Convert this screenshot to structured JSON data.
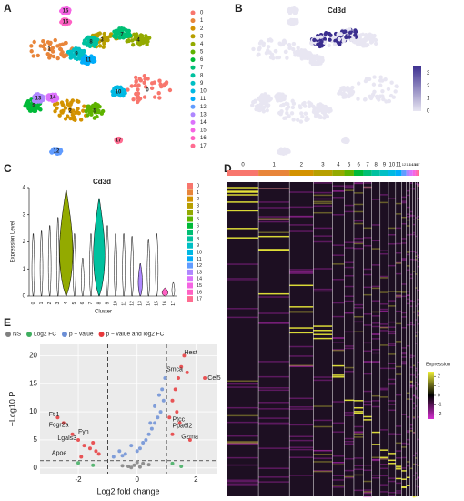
{
  "chart_data": [
    {
      "type": "umap",
      "panel_label": "A",
      "categories": [
        "0",
        "1",
        "2",
        "3",
        "4",
        "5",
        "6",
        "7",
        "8",
        "9",
        "10",
        "11",
        "12",
        "13",
        "14",
        "15",
        "16",
        "17"
      ],
      "colors": [
        "#F8766D",
        "#E8853A",
        "#D39200",
        "#B79F00",
        "#93AA00",
        "#5EB300",
        "#00BA38",
        "#00BF74",
        "#00C19F",
        "#00BFC4",
        "#00B9E3",
        "#00ADFA",
        "#619CFF",
        "#AE87FF",
        "#DB72FB",
        "#F564E3",
        "#FF61C3",
        "#FF6C91"
      ]
    },
    {
      "type": "feature",
      "panel_label": "B",
      "title": "Cd3d",
      "colorbar": {
        "lim": [
          0,
          3.6
        ],
        "ticks": [
          0,
          1,
          2,
          3
        ],
        "low": "#e8e6f2",
        "high": "#3b2e8f"
      }
    },
    {
      "type": "violin",
      "panel_label": "C",
      "title": "Cd3d",
      "x_label": "Cluster",
      "y_label": "Expression Level",
      "categories": [
        "0",
        "1",
        "2",
        "3",
        "4",
        "5",
        "6",
        "7",
        "8",
        "9",
        "10",
        "11",
        "12",
        "13",
        "14",
        "15",
        "16",
        "17"
      ],
      "values": [
        2.3,
        2.4,
        2.6,
        2.9,
        3.9,
        2.3,
        1.4,
        2.3,
        3.6,
        2.6,
        2.3,
        2.3,
        2.2,
        1.2,
        2.1,
        2.3,
        0.3,
        0.5
      ],
      "ylim": [
        0,
        4
      ],
      "yticks": [
        0,
        1,
        2,
        3,
        4
      ]
    },
    {
      "type": "heatmap",
      "panel_label": "D",
      "legend_title": "Expression",
      "categories": [
        "0",
        "1",
        "2",
        "3",
        "4",
        "5",
        "6",
        "7",
        "8",
        "9",
        "10",
        "11",
        "12",
        "13",
        "14",
        "15",
        "16",
        "17"
      ],
      "colorbar": {
        "lim": [
          -2.5,
          2.5
        ],
        "ticks": [
          -2,
          -1,
          0,
          1,
          2
        ],
        "low": "#d42fd0",
        "mid": "#000000",
        "high": "#f0f03a"
      }
    },
    {
      "type": "volcano",
      "panel_label": "E",
      "x_label": "Log2 fold change",
      "y_label": "−Log10 P",
      "xlim": [
        -3.3,
        2.7
      ],
      "ylim": [
        -1,
        22
      ],
      "xticks": [
        -2,
        0,
        2
      ],
      "yticks": [
        0,
        5,
        10,
        15,
        20
      ],
      "vlines": [
        -1,
        1
      ],
      "hline": 1.3,
      "series": [
        {
          "name": "NS",
          "color": "#808080",
          "x": [
            -0.3,
            -0.1,
            0.1,
            0.2,
            -0.5,
            0.4,
            0.0,
            -0.2
          ],
          "values": [
            0.3,
            0.5,
            0.2,
            0.8,
            0.4,
            0.6,
            1.0,
            0.1
          ]
        },
        {
          "name": "Log2 FC",
          "color": "#3fae5f",
          "x": [
            -1.5,
            1.2,
            -2.0,
            1.5
          ],
          "values": [
            0.5,
            0.8,
            0.9,
            0.3
          ]
        },
        {
          "name": "p − value",
          "color": "#6c8fd6",
          "x": [
            -0.8,
            -0.6,
            -0.4,
            -0.2,
            0.0,
            0.2,
            0.4,
            0.5,
            0.6,
            0.7,
            0.8,
            0.9,
            0.3,
            0.1,
            -0.5,
            0.85,
            0.95,
            0.6,
            0.75,
            0.45
          ],
          "values": [
            2,
            3,
            2.5,
            4,
            3,
            4.5,
            6,
            7,
            8,
            9,
            10,
            12,
            5,
            3.5,
            2.2,
            14,
            16,
            11,
            13,
            8
          ]
        },
        {
          "name": "p − value and log2 FC",
          "color": "#e8383b",
          "x": [
            -2.5,
            -2.2,
            -2.0,
            -1.8,
            -1.6,
            -1.4,
            -1.3,
            -2.7,
            -1.9,
            -1.5,
            1.1,
            1.2,
            1.3,
            1.4,
            1.5,
            1.6,
            1.7,
            1.2,
            1.35,
            2.3,
            1.8,
            1.45
          ],
          "values": [
            8,
            6,
            5,
            4,
            3.5,
            3,
            2.5,
            9,
            2,
            4.5,
            9,
            12,
            14,
            16,
            18,
            20,
            17,
            6,
            10,
            16,
            5,
            8
          ]
        }
      ],
      "annotations": [
        {
          "text": "Hest",
          "x": 1.6,
          "y": 20.5
        },
        {
          "text": "Cel5",
          "x": 2.4,
          "y": 16
        },
        {
          "text": "Smca",
          "x": 1.0,
          "y": 17.5
        },
        {
          "text": "Ptcc",
          "x": 1.2,
          "y": 8.6
        },
        {
          "text": "Ppa6l2",
          "x": 1.2,
          "y": 7.5
        },
        {
          "text": "Gzma",
          "x": 1.5,
          "y": 5.5
        },
        {
          "text": "Ftl1",
          "x": -3.0,
          "y": 9.5
        },
        {
          "text": "Fcgr2a",
          "x": -3.0,
          "y": 7.6
        },
        {
          "text": "Fyn",
          "x": -2.0,
          "y": 6.4
        },
        {
          "text": "Lgals3",
          "x": -2.7,
          "y": 5.3
        },
        {
          "text": "Apoe",
          "x": -2.9,
          "y": 2.6
        }
      ]
    }
  ]
}
